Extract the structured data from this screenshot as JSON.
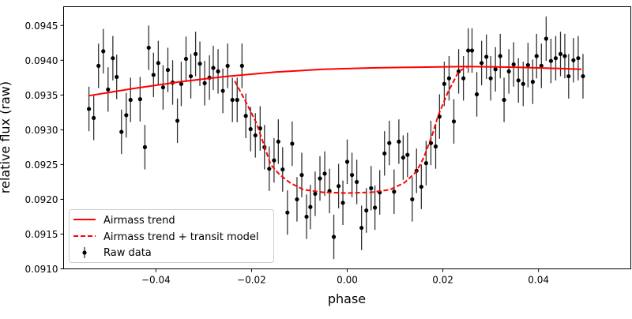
{
  "chart_data": {
    "type": "scatter",
    "title": "",
    "xlabel": "phase",
    "ylabel": "relative flux (raw)",
    "xlim": [
      -0.0593,
      0.0593
    ],
    "ylim": [
      0.091,
      0.09477
    ],
    "xticks": [
      -0.04,
      -0.02,
      0.0,
      0.02,
      0.04
    ],
    "xtick_labels": [
      "−0.04",
      "−0.02",
      "0.00",
      "0.02",
      "0.04"
    ],
    "yticks": [
      0.091,
      0.0915,
      0.092,
      0.0925,
      0.093,
      0.0935,
      0.094,
      0.0945
    ],
    "ytick_labels": [
      "0.0910",
      "0.0915",
      "0.0920",
      "0.0925",
      "0.0930",
      "0.0935",
      "0.0940",
      "0.0945"
    ],
    "grid": false,
    "legend": {
      "placement": "lower-left",
      "entries": [
        "Airmass trend",
        "Airmass trend + transit model",
        "Raw data"
      ]
    },
    "colors": {
      "trend": "#ff0000",
      "model": "#ff0000",
      "data": "#000000"
    },
    "series": [
      {
        "name": "Airmass trend",
        "style": "solid-line",
        "points": [
          [
            -0.054,
            0.09349
          ],
          [
            -0.045,
            0.09359
          ],
          [
            -0.035,
            0.09369
          ],
          [
            -0.025,
            0.09377
          ],
          [
            -0.015,
            0.09383
          ],
          [
            -0.005,
            0.09387
          ],
          [
            0.005,
            0.09389
          ],
          [
            0.015,
            0.0939
          ],
          [
            0.025,
            0.09391
          ],
          [
            0.035,
            0.0939
          ],
          [
            0.045,
            0.09388
          ],
          [
            0.049,
            0.09387
          ]
        ]
      },
      {
        "name": "Airmass trend + transit model",
        "style": "dashed-line",
        "points": [
          [
            -0.0235,
            0.0937
          ],
          [
            -0.0212,
            0.0934
          ],
          [
            -0.019,
            0.0931
          ],
          [
            -0.0175,
            0.0928
          ],
          [
            -0.016,
            0.0925
          ],
          [
            -0.0142,
            0.09236
          ],
          [
            -0.012,
            0.09224
          ],
          [
            -0.0092,
            0.09214
          ],
          [
            -0.005,
            0.0921
          ],
          [
            0,
            0.09209
          ],
          [
            0.005,
            0.0921
          ],
          [
            0.009,
            0.09214
          ],
          [
            0.012,
            0.09224
          ],
          [
            0.0145,
            0.0924
          ],
          [
            0.016,
            0.0926
          ],
          [
            0.0178,
            0.09293
          ],
          [
            0.019,
            0.0932
          ],
          [
            0.021,
            0.09353
          ],
          [
            0.0233,
            0.09384
          ],
          [
            0.025,
            0.0939
          ]
        ]
      },
      {
        "name": "Raw data",
        "style": "errorbar-points",
        "yerr": 0.00032,
        "points": [
          [
            -0.054,
            0.0933
          ],
          [
            -0.053,
            0.09317
          ],
          [
            -0.052,
            0.09392
          ],
          [
            -0.051,
            0.09413
          ],
          [
            -0.05,
            0.09358
          ],
          [
            -0.049,
            0.09403
          ],
          [
            -0.0482,
            0.09376
          ],
          [
            -0.0472,
            0.09297
          ],
          [
            -0.0462,
            0.09321
          ],
          [
            -0.0453,
            0.09343
          ],
          [
            -0.0433,
            0.09344
          ],
          [
            -0.0423,
            0.09275
          ],
          [
            -0.0415,
            0.09418
          ],
          [
            -0.0405,
            0.09379
          ],
          [
            -0.0395,
            0.09396
          ],
          [
            -0.0385,
            0.09361
          ],
          [
            -0.0375,
            0.09386
          ],
          [
            -0.0365,
            0.09368
          ],
          [
            -0.0355,
            0.09313
          ],
          [
            -0.0347,
            0.09366
          ],
          [
            -0.0337,
            0.09402
          ],
          [
            -0.0327,
            0.09377
          ],
          [
            -0.0317,
            0.09409
          ],
          [
            -0.0308,
            0.09395
          ],
          [
            -0.0298,
            0.09367
          ],
          [
            -0.0288,
            0.09375
          ],
          [
            -0.028,
            0.09389
          ],
          [
            -0.027,
            0.09384
          ],
          [
            -0.026,
            0.09356
          ],
          [
            -0.025,
            0.09392
          ],
          [
            -0.024,
            0.09343
          ],
          [
            -0.023,
            0.09343
          ],
          [
            -0.022,
            0.09392
          ],
          [
            -0.0212,
            0.0932
          ],
          [
            -0.0202,
            0.09301
          ],
          [
            -0.0192,
            0.09292
          ],
          [
            -0.0182,
            0.09302
          ],
          [
            -0.0173,
            0.09275
          ],
          [
            -0.0163,
            0.09244
          ],
          [
            -0.0153,
            0.09256
          ],
          [
            -0.0144,
            0.09283
          ],
          [
            -0.0135,
            0.09243
          ],
          [
            -0.0125,
            0.09181
          ],
          [
            -0.0115,
            0.0928
          ],
          [
            -0.0105,
            0.092
          ],
          [
            -0.0095,
            0.09235
          ],
          [
            -0.0085,
            0.09175
          ],
          [
            -0.0077,
            0.09189
          ],
          [
            -0.0067,
            0.09208
          ],
          [
            -0.0057,
            0.0923
          ],
          [
            -0.0047,
            0.09237
          ],
          [
            -0.0037,
            0.09212
          ],
          [
            -0.0028,
            0.09146
          ],
          [
            -0.0018,
            0.09219
          ],
          [
            -0.0009,
            0.09195
          ],
          [
            0.0,
            0.09254
          ],
          [
            0.001,
            0.09235
          ],
          [
            0.002,
            0.09225
          ],
          [
            0.003,
            0.09159
          ],
          [
            0.004,
            0.09184
          ],
          [
            0.005,
            0.09216
          ],
          [
            0.0058,
            0.09188
          ],
          [
            0.0068,
            0.0921
          ],
          [
            0.0078,
            0.09266
          ],
          [
            0.0088,
            0.09281
          ],
          [
            0.0098,
            0.09211
          ],
          [
            0.0108,
            0.09283
          ],
          [
            0.0117,
            0.0926
          ],
          [
            0.0126,
            0.09264
          ],
          [
            0.0136,
            0.092
          ],
          [
            0.0145,
            0.09241
          ],
          [
            0.0155,
            0.09218
          ],
          [
            0.0165,
            0.09252
          ],
          [
            0.0175,
            0.09281
          ],
          [
            0.0185,
            0.09276
          ],
          [
            0.0193,
            0.09319
          ],
          [
            0.0203,
            0.09366
          ],
          [
            0.0213,
            0.09374
          ],
          [
            0.0223,
            0.09312
          ],
          [
            0.0233,
            0.09384
          ],
          [
            0.0243,
            0.09374
          ],
          [
            0.0253,
            0.09414
          ],
          [
            0.0261,
            0.09414
          ],
          [
            0.0271,
            0.09351
          ],
          [
            0.0281,
            0.09396
          ],
          [
            0.0291,
            0.09405
          ],
          [
            0.03,
            0.09374
          ],
          [
            0.031,
            0.09387
          ],
          [
            0.032,
            0.09406
          ],
          [
            0.0328,
            0.09343
          ],
          [
            0.0338,
            0.09384
          ],
          [
            0.0348,
            0.09394
          ],
          [
            0.0358,
            0.09371
          ],
          [
            0.0368,
            0.09366
          ],
          [
            0.0378,
            0.09393
          ],
          [
            0.0388,
            0.09369
          ],
          [
            0.0396,
            0.09406
          ],
          [
            0.0406,
            0.09392
          ],
          [
            0.0416,
            0.09431
          ],
          [
            0.0426,
            0.09399
          ],
          [
            0.0436,
            0.09403
          ],
          [
            0.0446,
            0.09409
          ],
          [
            0.0455,
            0.09406
          ],
          [
            0.0463,
            0.09377
          ],
          [
            0.0473,
            0.094
          ],
          [
            0.0483,
            0.09403
          ],
          [
            0.0493,
            0.09377
          ]
        ]
      }
    ]
  }
}
